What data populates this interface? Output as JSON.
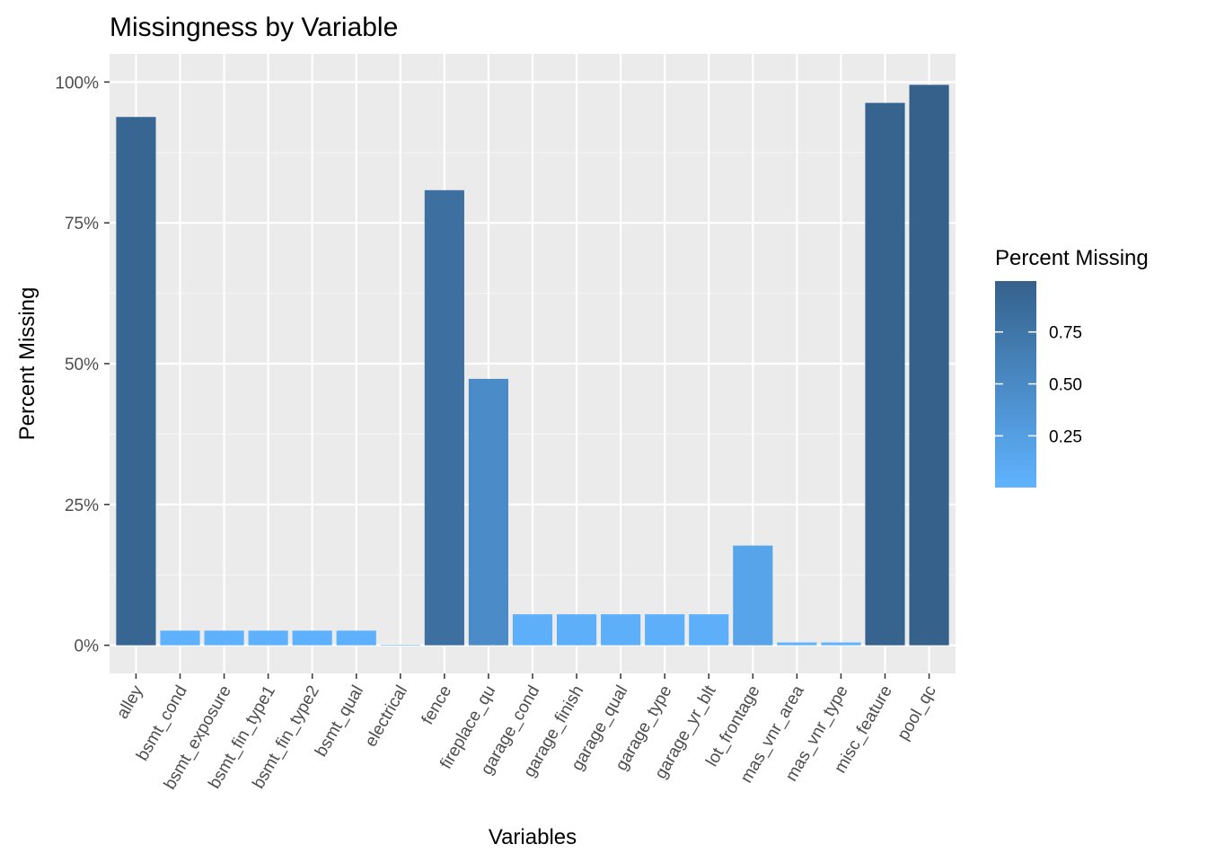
{
  "chart_data": {
    "type": "bar",
    "title": "Missingness by Variable",
    "xlabel": "Variables",
    "ylabel": "Percent Missing",
    "ylim": [
      -0.05,
      1.05
    ],
    "y_ticks": [
      0,
      0.25,
      0.5,
      0.75,
      1.0
    ],
    "y_tick_labels": [
      "0%",
      "25%",
      "50%",
      "75%",
      "100%"
    ],
    "categories": [
      "alley",
      "bsmt_cond",
      "bsmt_exposure",
      "bsmt_fin_type1",
      "bsmt_fin_type2",
      "bsmt_qual",
      "electrical",
      "fence",
      "fireplace_qu",
      "garage_cond",
      "garage_finish",
      "garage_qual",
      "garage_type",
      "garage_yr_blt",
      "lot_frontage",
      "mas_vnr_area",
      "mas_vnr_type",
      "misc_feature",
      "pool_qc"
    ],
    "values": [
      0.938,
      0.026,
      0.026,
      0.026,
      0.026,
      0.026,
      0.001,
      0.808,
      0.473,
      0.055,
      0.055,
      0.055,
      0.055,
      0.055,
      0.177,
      0.005,
      0.005,
      0.963,
      0.995
    ],
    "grid": true,
    "legend": {
      "title": "Percent Missing",
      "position": "right",
      "ticks": [
        0.25,
        0.5,
        0.75
      ],
      "tick_labels": [
        "0.25",
        "0.50",
        "0.75"
      ],
      "range": [
        0.001,
        0.995
      ],
      "color_low": "#5fb3ff",
      "color_high": "#35618b"
    },
    "colors": {
      "panel_background": "#ebebeb",
      "grid_major": "#ffffff",
      "grid_minor": "#f5f5f5"
    }
  }
}
